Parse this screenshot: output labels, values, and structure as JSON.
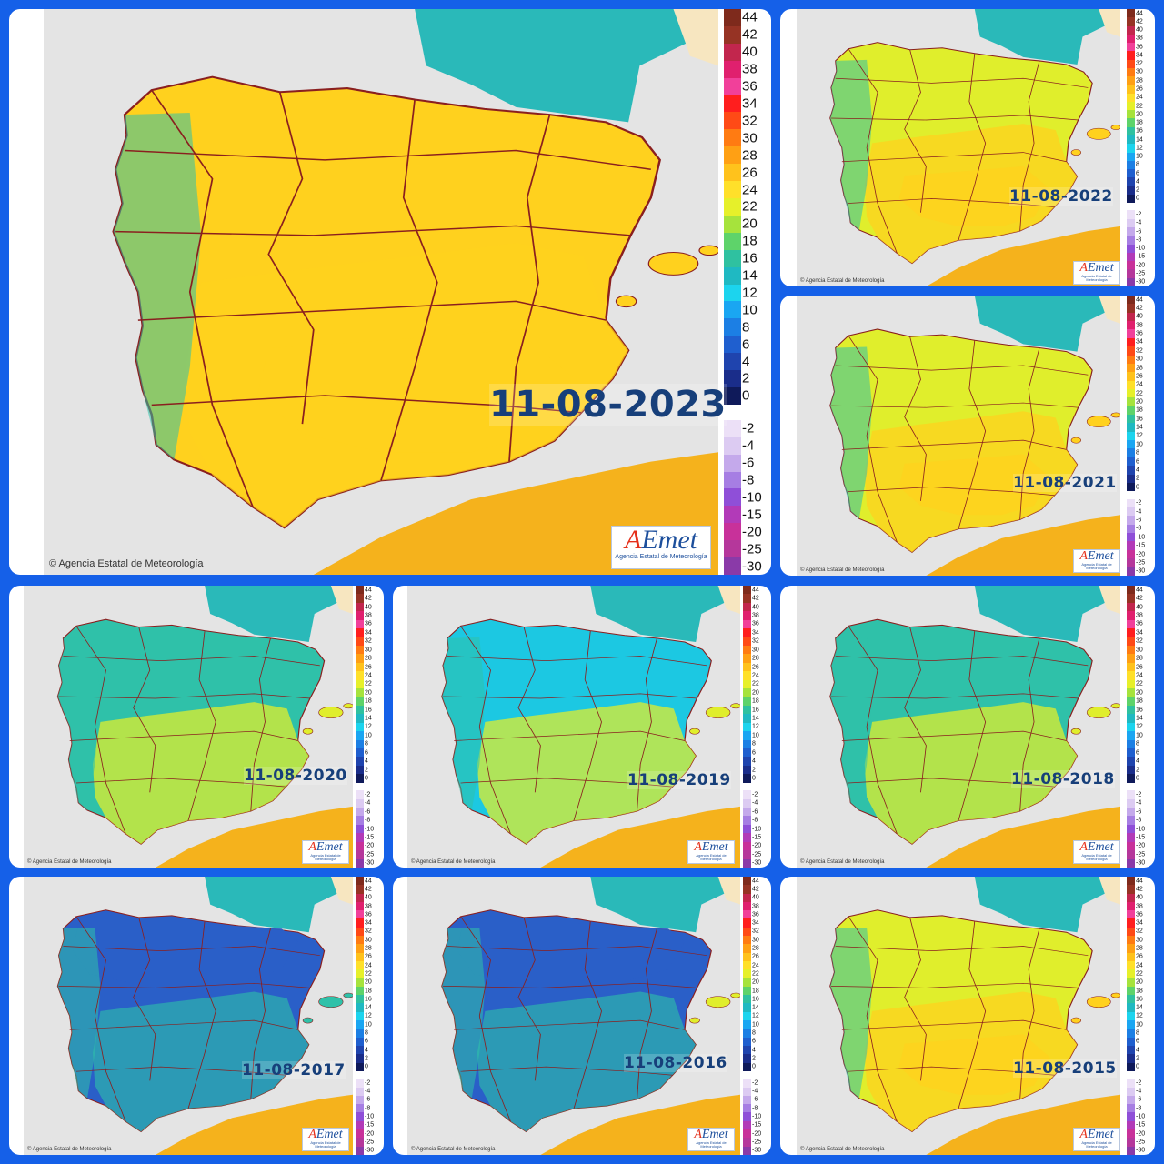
{
  "panels": [
    {
      "date": "11-08-2023",
      "copyright": "© Agencia Estatal de Meteorología",
      "logo": "AEmet",
      "logo_sub": "Agencia Estatal de Meteorología",
      "dominant": "warm",
      "highlight": "warm"
    },
    {
      "date": "11-08-2022",
      "copyright": "© Agencia Estatal de Meteorología",
      "logo": "AEmet",
      "logo_sub": "Agencia Estatal de Meteorología",
      "dominant": "mild",
      "highlight": "warm"
    },
    {
      "date": "11-08-2021",
      "copyright": "© Agencia Estatal de Meteorología",
      "logo": "AEmet",
      "logo_sub": "Agencia Estatal de Meteorología",
      "dominant": "mild",
      "highlight": "warm"
    },
    {
      "date": "11-08-2020",
      "copyright": "© Agencia Estatal de Meteorología",
      "logo": "AEmet",
      "logo_sub": "Agencia Estatal de Meteorología",
      "dominant": "teal",
      "highlight": "mild"
    },
    {
      "date": "11-08-2019",
      "copyright": "© Agencia Estatal de Meteorología",
      "logo": "AEmet",
      "logo_sub": "Agencia Estatal de Meteorología",
      "dominant": "cool",
      "highlight": "mild"
    },
    {
      "date": "11-08-2018",
      "copyright": "© Agencia Estatal de Meteorología",
      "logo": "AEmet",
      "logo_sub": "Agencia Estatal de Meteorología",
      "dominant": "teal",
      "highlight": "mild"
    },
    {
      "date": "11-08-2017",
      "copyright": "© Agencia Estatal de Meteorología",
      "logo": "AEmet",
      "logo_sub": "Agencia Estatal de Meteorología",
      "dominant": "cold",
      "highlight": "teal"
    },
    {
      "date": "11-08-2016",
      "copyright": "© Agencia Estatal de Meteorología",
      "logo": "AEmet",
      "logo_sub": "Agencia Estatal de Meteorología",
      "dominant": "cold",
      "highlight": "mild"
    },
    {
      "date": "11-08-2015",
      "copyright": "© Agencia Estatal de Meteorología",
      "logo": "AEmet",
      "logo_sub": "Agencia Estatal de Meteorología",
      "dominant": "mild",
      "highlight": "warm"
    }
  ],
  "legend": {
    "positive": [
      {
        "label": "44",
        "color": "#7e2a1c"
      },
      {
        "label": "42",
        "color": "#963324"
      },
      {
        "label": "40",
        "color": "#c2264d"
      },
      {
        "label": "38",
        "color": "#e0206e"
      },
      {
        "label": "36",
        "color": "#f1409a"
      },
      {
        "label": "34",
        "color": "#ff1e1e"
      },
      {
        "label": "32",
        "color": "#ff4a16"
      },
      {
        "label": "30",
        "color": "#ff7b12"
      },
      {
        "label": "28",
        "color": "#ffa014"
      },
      {
        "label": "26",
        "color": "#ffc21c"
      },
      {
        "label": "24",
        "color": "#ffe02a"
      },
      {
        "label": "22",
        "color": "#e6f02a"
      },
      {
        "label": "20",
        "color": "#a6e33c"
      },
      {
        "label": "18",
        "color": "#5ed36a"
      },
      {
        "label": "16",
        "color": "#2fc1a0"
      },
      {
        "label": "14",
        "color": "#1fb9c2"
      },
      {
        "label": "12",
        "color": "#1cd4ee"
      },
      {
        "label": "10",
        "color": "#1aa6f2"
      },
      {
        "label": "8",
        "color": "#1c7fe4"
      },
      {
        "label": "6",
        "color": "#1f5fcf"
      },
      {
        "label": "4",
        "color": "#1f44ae"
      },
      {
        "label": "2",
        "color": "#1a2d8a"
      },
      {
        "label": "0",
        "color": "#0f1a5a"
      }
    ],
    "negative": [
      {
        "label": "-2",
        "color": "#ece0f7"
      },
      {
        "label": "-4",
        "color": "#dccbf2"
      },
      {
        "label": "-6",
        "color": "#c4a9eb"
      },
      {
        "label": "-8",
        "color": "#a67ee3"
      },
      {
        "label": "-10",
        "color": "#8f4fd8"
      },
      {
        "label": "-15",
        "color": "#b23ab8"
      },
      {
        "label": "-20",
        "color": "#c8319a"
      },
      {
        "label": "-25",
        "color": "#b5379b"
      },
      {
        "label": "-30",
        "color": "#8a3aa8"
      }
    ]
  },
  "palette": {
    "sea": "#e4e4e4",
    "france": "#2ab9b9",
    "border": "#8a1f1f",
    "warm": "#ffd11e",
    "mild": "#e0ee2c",
    "teal": "#2fc1a9",
    "cool": "#1cc8e2",
    "cold": "#2a5fc8",
    "africa": "#f5b21c"
  }
}
